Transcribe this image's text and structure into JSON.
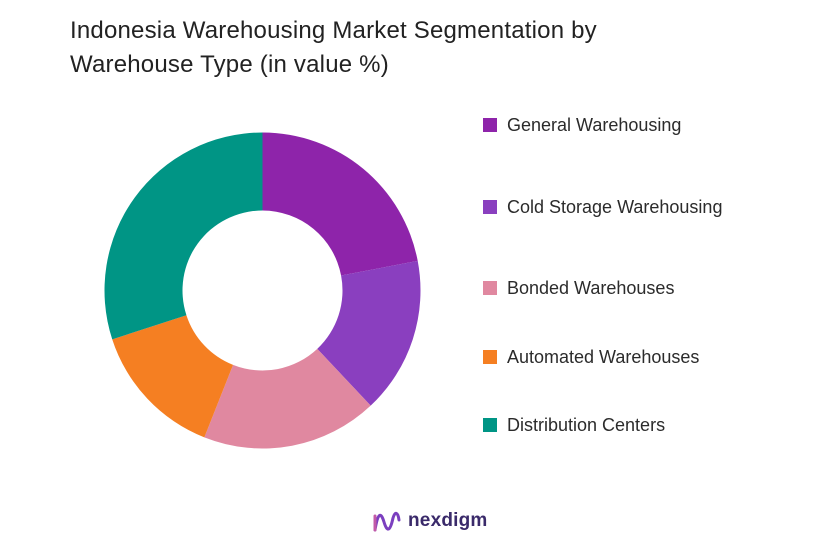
{
  "title_line1": "Indonesia Warehousing Market Segmentation by",
  "title_line2": "Warehouse Type (in value %)",
  "brand": {
    "name": "nexdigm",
    "logo_icon": "nexdigm-wave-logo-icon"
  },
  "chart_data": {
    "type": "pie",
    "variant": "donut",
    "title": "Indonesia Warehousing Market Segmentation by Warehouse Type (in value %)",
    "legend_position": "right",
    "series": [
      {
        "name": "General Warehousing",
        "value": 22,
        "color": "#8E24AA"
      },
      {
        "name": "Cold Storage Warehousing",
        "value": 16,
        "color": "#8A3FBF"
      },
      {
        "name": "Bonded Warehouses",
        "value": 18,
        "color": "#E088A0"
      },
      {
        "name": "Automated Warehouses",
        "value": 14,
        "color": "#F57F22"
      },
      {
        "name": "Distribution Centers",
        "value": 30,
        "color": "#009585"
      }
    ]
  }
}
